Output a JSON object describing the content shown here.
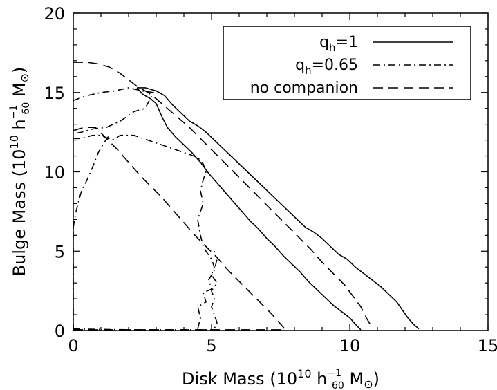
{
  "chart_data": {
    "type": "line",
    "title": "",
    "xlabel": {
      "pre": "Disk Mass  (10",
      "sup": "10",
      "mid": " h",
      "sup2": "−1",
      "sub2": "60",
      "post": " M",
      "sym": "⊙",
      "close": ")"
    },
    "ylabel": {
      "pre": "Bulge Mass  (10",
      "sup": "10",
      "mid": " h",
      "sup2": "−1",
      "sub2": "60",
      "post": " M",
      "sym": "⊙",
      "close": ")"
    },
    "xlim": [
      0,
      15
    ],
    "ylim": [
      0,
      20
    ],
    "xticks": [
      0,
      5,
      10,
      15
    ],
    "yticks": [
      0,
      5,
      10,
      15,
      20
    ],
    "xtick_labels": [
      "0",
      "5",
      "10",
      "15"
    ],
    "ytick_labels": [
      "0",
      "5",
      "10",
      "15",
      "20"
    ],
    "grid": false,
    "legend_position": "top-right",
    "series": [
      {
        "name": "q_h=1",
        "label": {
          "q": "q",
          "sub": "h",
          "rest": "=1"
        },
        "style": "solid",
        "segments": [
          [
            [
              2.3,
              15.3
            ],
            [
              2.6,
              15.3
            ],
            [
              3.0,
              15.1
            ],
            [
              3.3,
              14.8
            ],
            [
              3.6,
              14.2
            ],
            [
              3.9,
              13.7
            ],
            [
              4.2,
              13.2
            ],
            [
              4.5,
              12.9
            ],
            [
              4.8,
              12.5
            ],
            [
              5.1,
              12.0
            ],
            [
              5.4,
              11.5
            ],
            [
              5.7,
              11.0
            ],
            [
              6.0,
              10.5
            ],
            [
              6.3,
              10.0
            ],
            [
              6.6,
              9.5
            ],
            [
              6.9,
              9.0
            ],
            [
              7.2,
              8.5
            ],
            [
              7.5,
              8.0
            ],
            [
              7.8,
              7.5
            ],
            [
              8.1,
              7.0
            ],
            [
              8.4,
              6.5
            ],
            [
              8.7,
              6.2
            ],
            [
              9.0,
              5.8
            ],
            [
              9.3,
              5.3
            ],
            [
              9.6,
              4.8
            ],
            [
              9.9,
              4.5
            ],
            [
              10.2,
              4.0
            ],
            [
              10.5,
              3.6
            ],
            [
              10.8,
              3.2
            ],
            [
              11.1,
              2.8
            ],
            [
              11.4,
              2.3
            ],
            [
              11.7,
              1.8
            ],
            [
              11.9,
              1.3
            ],
            [
              12.1,
              0.8
            ],
            [
              12.3,
              0.4
            ],
            [
              12.5,
              0.1
            ]
          ],
          [
            [
              2.3,
              15.3
            ],
            [
              2.5,
              14.9
            ],
            [
              2.8,
              14.6
            ],
            [
              3.0,
              14.3
            ],
            [
              3.2,
              13.5
            ],
            [
              3.4,
              12.8
            ],
            [
              3.7,
              12.2
            ],
            [
              4.0,
              11.7
            ],
            [
              4.3,
              11.2
            ],
            [
              4.6,
              10.6
            ],
            [
              4.9,
              9.9
            ],
            [
              5.2,
              9.3
            ],
            [
              5.5,
              8.7
            ],
            [
              5.8,
              8.1
            ],
            [
              6.1,
              7.5
            ],
            [
              6.4,
              6.9
            ],
            [
              6.7,
              6.4
            ],
            [
              7.0,
              5.8
            ],
            [
              7.3,
              5.3
            ],
            [
              7.6,
              4.7
            ],
            [
              7.9,
              4.2
            ],
            [
              8.2,
              3.7
            ],
            [
              8.5,
              3.1
            ],
            [
              8.8,
              2.6
            ],
            [
              9.1,
              2.1
            ],
            [
              9.4,
              1.6
            ],
            [
              9.7,
              1.2
            ],
            [
              10.0,
              0.8
            ],
            [
              10.2,
              0.4
            ],
            [
              10.4,
              0.05
            ]
          ]
        ]
      },
      {
        "name": "q_h=0.65",
        "label": {
          "q": "q",
          "sub": "h",
          "rest": "=0.65"
        },
        "style": "dashdot",
        "segments": [
          [
            [
              0.0,
              14.5
            ],
            [
              0.5,
              14.8
            ],
            [
              1.0,
              15.0
            ],
            [
              1.5,
              15.1
            ],
            [
              2.0,
              15.3
            ],
            [
              2.5,
              15.1
            ],
            [
              2.9,
              15.0
            ],
            [
              2.6,
              14.0
            ],
            [
              2.2,
              13.8
            ],
            [
              1.7,
              13.2
            ],
            [
              1.2,
              12.8
            ],
            [
              0.7,
              12.7
            ],
            [
              0.3,
              12.5
            ],
            [
              0.0,
              12.4
            ]
          ],
          [
            [
              0.0,
              12.1
            ],
            [
              0.3,
              12.1
            ],
            [
              0.7,
              12.3
            ],
            [
              1.0,
              12.3
            ],
            [
              1.4,
              12.0
            ],
            [
              1.7,
              12.3
            ],
            [
              2.2,
              12.3
            ],
            [
              2.7,
              12.0
            ],
            [
              3.2,
              11.7
            ],
            [
              3.7,
              11.4
            ],
            [
              4.2,
              11.1
            ],
            [
              4.5,
              10.9
            ],
            [
              4.7,
              10.5
            ],
            [
              4.8,
              10.0
            ],
            [
              4.7,
              9.5
            ],
            [
              4.6,
              8.8
            ],
            [
              4.7,
              8.0
            ],
            [
              4.5,
              7.0
            ],
            [
              4.6,
              6.0
            ],
            [
              4.7,
              5.3
            ],
            [
              4.8,
              5.0
            ],
            [
              5.0,
              4.5
            ],
            [
              5.1,
              4.0
            ],
            [
              5.0,
              3.5
            ],
            [
              5.2,
              3.0
            ],
            [
              5.0,
              2.5
            ],
            [
              5.1,
              2.0
            ],
            [
              5.0,
              1.5
            ],
            [
              5.1,
              1.0
            ],
            [
              5.2,
              0.5
            ],
            [
              5.1,
              0.1
            ]
          ],
          [
            [
              0.0,
              6.5
            ],
            [
              0.1,
              7.5
            ],
            [
              0.2,
              8.2
            ],
            [
              0.3,
              8.8
            ],
            [
              0.5,
              9.5
            ],
            [
              0.7,
              10.3
            ],
            [
              0.9,
              11.2
            ],
            [
              1.1,
              11.8
            ],
            [
              1.3,
              12.3
            ]
          ],
          [
            [
              4.5,
              0.1
            ],
            [
              4.6,
              0.8
            ],
            [
              4.5,
              1.5
            ],
            [
              4.8,
              1.8
            ],
            [
              4.7,
              2.4
            ],
            [
              5.0,
              2.6
            ],
            [
              4.9,
              3.2
            ],
            [
              5.1,
              3.8
            ],
            [
              5.2,
              4.5
            ],
            [
              5.1,
              5.0
            ]
          ],
          [
            [
              0.0,
              0.1
            ],
            [
              2.0,
              0.05
            ],
            [
              4.0,
              0.05
            ],
            [
              5.2,
              0.05
            ]
          ],
          [
            [
              0.0,
              0.0
            ],
            [
              0.0,
              6.5
            ]
          ]
        ]
      },
      {
        "name": "no companion",
        "label": {
          "q": "",
          "sub": "",
          "rest": "no companion"
        },
        "style": "dashed",
        "segments": [
          [
            [
              0.0,
              16.9
            ],
            [
              0.5,
              16.9
            ],
            [
              0.9,
              16.8
            ],
            [
              1.3,
              16.6
            ],
            [
              1.7,
              16.2
            ],
            [
              2.0,
              15.8
            ],
            [
              2.3,
              15.4
            ],
            [
              2.7,
              15.0
            ],
            [
              3.0,
              14.6
            ],
            [
              3.4,
              14.0
            ],
            [
              3.8,
              13.4
            ],
            [
              4.2,
              12.8
            ],
            [
              4.6,
              12.1
            ],
            [
              5.0,
              11.4
            ],
            [
              5.4,
              10.7
            ],
            [
              5.8,
              10.0
            ],
            [
              6.2,
              9.3
            ],
            [
              6.6,
              8.6
            ],
            [
              7.0,
              7.9
            ],
            [
              7.4,
              7.2
            ],
            [
              7.8,
              6.5
            ],
            [
              8.2,
              5.8
            ],
            [
              8.6,
              5.1
            ],
            [
              9.0,
              4.3
            ],
            [
              9.4,
              3.6
            ],
            [
              9.8,
              2.9
            ],
            [
              10.1,
              2.2
            ],
            [
              10.4,
              1.5
            ],
            [
              10.6,
              0.8
            ],
            [
              10.8,
              0.2
            ]
          ],
          [
            [
              0.0,
              12.6
            ],
            [
              0.4,
              12.8
            ],
            [
              0.8,
              12.8
            ],
            [
              1.2,
              12.1
            ],
            [
              1.6,
              11.4
            ],
            [
              2.0,
              10.6
            ],
            [
              2.4,
              9.8
            ],
            [
              2.8,
              9.1
            ],
            [
              3.2,
              8.4
            ],
            [
              3.6,
              7.6
            ],
            [
              4.0,
              6.8
            ],
            [
              4.4,
              6.0
            ],
            [
              4.8,
              5.3
            ],
            [
              5.2,
              4.6
            ],
            [
              5.6,
              3.8
            ],
            [
              6.0,
              3.1
            ],
            [
              6.4,
              2.4
            ],
            [
              6.8,
              1.7
            ],
            [
              7.2,
              1.0
            ],
            [
              7.5,
              0.4
            ],
            [
              7.7,
              0.0
            ]
          ],
          [
            [
              0.0,
              0.05
            ],
            [
              3.0,
              0.05
            ],
            [
              6.0,
              0.05
            ],
            [
              7.7,
              0.05
            ]
          ]
        ]
      }
    ]
  }
}
